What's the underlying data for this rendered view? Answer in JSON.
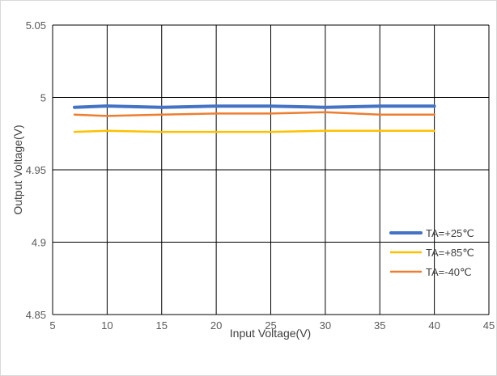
{
  "chart_data": {
    "type": "line",
    "title": "",
    "xlabel": "Input Voltage(V)",
    "ylabel": "Output Voltage(V)",
    "xlim": [
      5,
      45
    ],
    "ylim": [
      4.85,
      5.05
    ],
    "x_ticks": [
      "5",
      "10",
      "15",
      "20",
      "25",
      "30",
      "35",
      "40",
      "45"
    ],
    "y_ticks": [
      "4.85",
      "4.9",
      "4.95",
      "5",
      "5.05"
    ],
    "grid": true,
    "legend_position": "bottom-right",
    "series": [
      {
        "name": "TA=+25℃",
        "color": "#4472c4",
        "x": [
          7,
          10,
          15,
          20,
          25,
          30,
          35,
          40
        ],
        "y": [
          4.9932,
          4.9941,
          4.9932,
          4.994,
          4.994,
          4.9932,
          4.994,
          4.994
        ]
      },
      {
        "name": "TA=+85℃",
        "color": "#ffc000",
        "x": [
          7,
          10,
          15,
          20,
          25,
          30,
          35,
          40
        ],
        "y": [
          4.9762,
          4.977,
          4.9762,
          4.9762,
          4.9762,
          4.977,
          4.977,
          4.977
        ]
      },
      {
        "name": "TA=-40℃",
        "color": "#ed7d31",
        "x": [
          7,
          10,
          15,
          20,
          25,
          30,
          35,
          40
        ],
        "y": [
          4.9881,
          4.9872,
          4.9881,
          4.9889,
          4.9889,
          4.9898,
          4.9881,
          4.9881
        ]
      }
    ]
  }
}
